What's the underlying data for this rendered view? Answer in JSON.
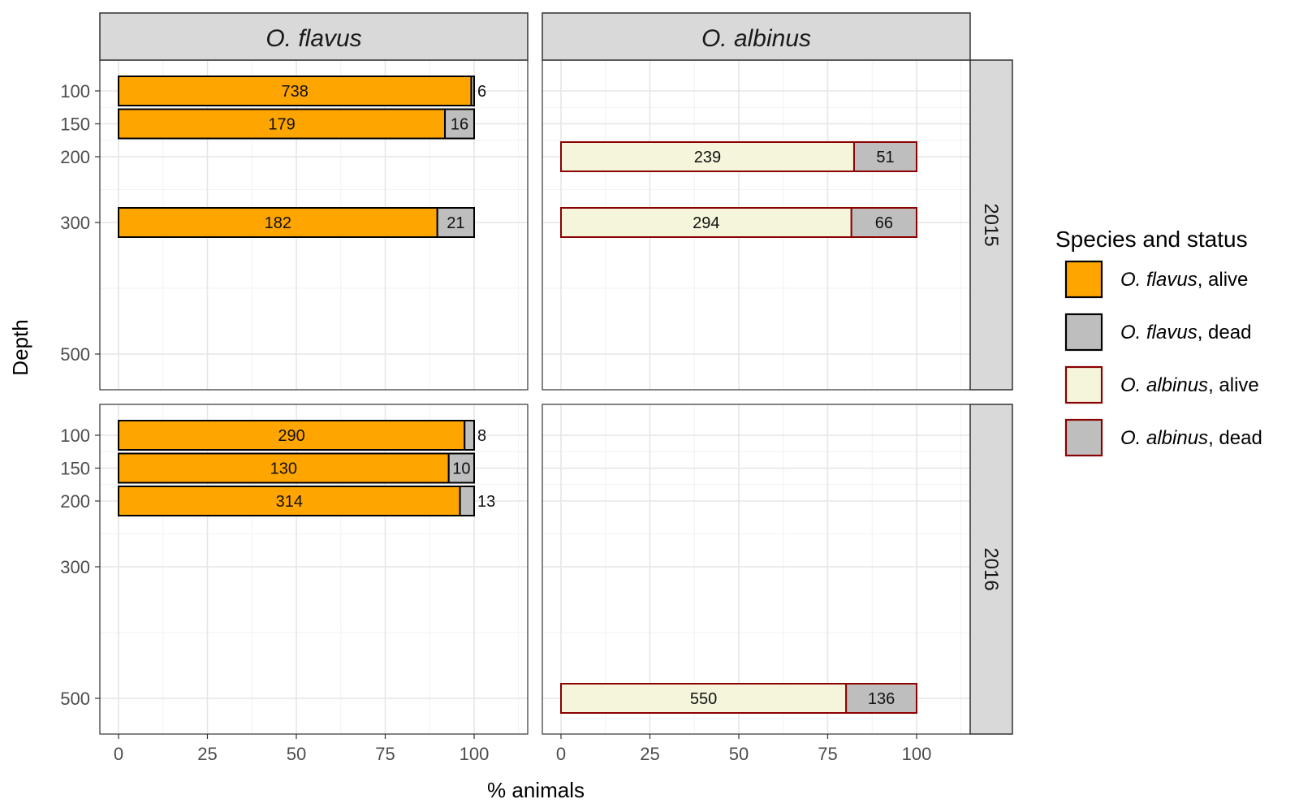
{
  "chart_data": {
    "type": "bar",
    "orientation": "horizontal",
    "stacked": true,
    "xlabel": "% animals",
    "ylabel": "Depth",
    "xlim": [
      0,
      100
    ],
    "x_ticks": [
      0,
      25,
      50,
      75,
      100
    ],
    "y_ticks": [
      100,
      150,
      200,
      300,
      500
    ],
    "grid": true,
    "facet_columns": [
      {
        "key": "flavus",
        "label": "O. flavus"
      },
      {
        "key": "albinus",
        "label": "O. albinus"
      }
    ],
    "facet_rows": [
      {
        "key": "2015",
        "label": "2015"
      },
      {
        "key": "2016",
        "label": "2016"
      }
    ],
    "legend": {
      "title": "Species and status",
      "position": "right",
      "items": [
        {
          "key": "flavus_alive",
          "species": "O. flavus",
          "status": ", alive",
          "fill": "#ffa500",
          "stroke": "#000000"
        },
        {
          "key": "flavus_dead",
          "species": "O. flavus",
          "status": ", dead",
          "fill": "#bebebe",
          "stroke": "#000000"
        },
        {
          "key": "albinus_alive",
          "species": "O. albinus",
          "status": ", alive",
          "fill": "#f5f5dc",
          "stroke": "#8b0000"
        },
        {
          "key": "albinus_dead",
          "species": "O. albinus",
          "status": ", dead",
          "fill": "#bebebe",
          "stroke": "#8b0000"
        }
      ]
    },
    "data": [
      {
        "year": "2015",
        "species": "flavus",
        "depth": 100,
        "alive": 738,
        "dead": 6
      },
      {
        "year": "2015",
        "species": "flavus",
        "depth": 150,
        "alive": 179,
        "dead": 16
      },
      {
        "year": "2015",
        "species": "flavus",
        "depth": 300,
        "alive": 182,
        "dead": 21
      },
      {
        "year": "2015",
        "species": "albinus",
        "depth": 200,
        "alive": 239,
        "dead": 51
      },
      {
        "year": "2015",
        "species": "albinus",
        "depth": 300,
        "alive": 294,
        "dead": 66
      },
      {
        "year": "2016",
        "species": "flavus",
        "depth": 100,
        "alive": 290,
        "dead": 8
      },
      {
        "year": "2016",
        "species": "flavus",
        "depth": 150,
        "alive": 130,
        "dead": 10
      },
      {
        "year": "2016",
        "species": "flavus",
        "depth": 200,
        "alive": 314,
        "dead": 13
      },
      {
        "year": "2016",
        "species": "albinus",
        "depth": 500,
        "alive": 550,
        "dead": 136
      }
    ]
  }
}
